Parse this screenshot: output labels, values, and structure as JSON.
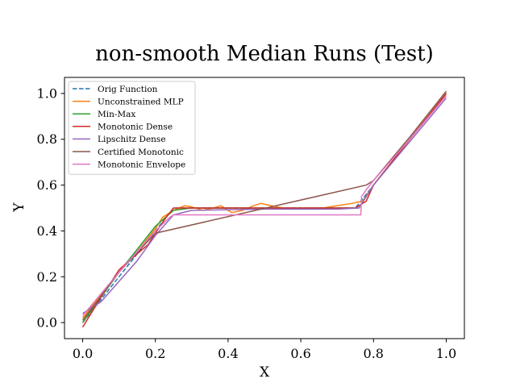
{
  "chart_data": {
    "type": "line",
    "title": "non-smooth Median Runs (Test)",
    "xlabel": "X",
    "ylabel": "Y",
    "xlim": [
      -0.05,
      1.05
    ],
    "ylim": [
      -0.07,
      1.07
    ],
    "xticks": [
      0.0,
      0.2,
      0.4,
      0.6,
      0.8,
      1.0
    ],
    "yticks": [
      0.0,
      0.2,
      0.4,
      0.6,
      0.8,
      1.0
    ],
    "xtick_labels": [
      "0.0",
      "0.2",
      "0.4",
      "0.6",
      "0.8",
      "1.0"
    ],
    "ytick_labels": [
      "0.0",
      "0.2",
      "0.4",
      "0.6",
      "0.8",
      "1.0"
    ],
    "legend_position": "top-left",
    "grid": false,
    "series": [
      {
        "name": "Orig Function",
        "color": "#1f77b4",
        "dashed": true,
        "x": [
          0.0,
          0.25,
          0.75,
          1.0
        ],
        "y": [
          0.0,
          0.5,
          0.5,
          1.0
        ]
      },
      {
        "name": "Unconstrained MLP",
        "color": "#ff7f0e",
        "dashed": false,
        "x": [
          0.0,
          0.05,
          0.1,
          0.15,
          0.2,
          0.22,
          0.25,
          0.28,
          0.3,
          0.33,
          0.36,
          0.38,
          0.41,
          0.44,
          0.47,
          0.49,
          0.52,
          0.55,
          0.58,
          0.62,
          0.66,
          0.7,
          0.74,
          0.77,
          0.8,
          0.85,
          0.9,
          0.95,
          1.0
        ],
        "y": [
          0.02,
          0.12,
          0.22,
          0.31,
          0.41,
          0.46,
          0.49,
          0.51,
          0.505,
          0.49,
          0.5,
          0.51,
          0.48,
          0.49,
          0.51,
          0.52,
          0.51,
          0.5,
          0.495,
          0.5,
          0.5,
          0.51,
          0.52,
          0.53,
          0.6,
          0.7,
          0.8,
          0.9,
          1.0
        ]
      },
      {
        "name": "Min-Max",
        "color": "#2ca02c",
        "dashed": false,
        "x": [
          0.0,
          0.1,
          0.2,
          0.25,
          0.3,
          0.5,
          0.76,
          0.8,
          0.9,
          1.0
        ],
        "y": [
          0.0,
          0.22,
          0.42,
          0.49,
          0.5,
          0.5,
          0.5,
          0.6,
          0.8,
          1.0
        ]
      },
      {
        "name": "Monotonic Dense",
        "color": "#d62728",
        "dashed": false,
        "x": [
          0.0,
          0.05,
          0.1,
          0.15,
          0.18,
          0.2,
          0.23,
          0.25,
          0.3,
          0.5,
          0.75,
          0.78,
          0.8,
          0.9,
          1.0
        ],
        "y": [
          -0.02,
          0.11,
          0.23,
          0.3,
          0.34,
          0.39,
          0.46,
          0.5,
          0.5,
          0.5,
          0.5,
          0.53,
          0.6,
          0.8,
          1.0
        ]
      },
      {
        "name": "Lipschitz Dense",
        "color": "#9467bd",
        "dashed": false,
        "x": [
          0.0,
          0.05,
          0.1,
          0.15,
          0.2,
          0.25,
          0.3,
          0.5,
          0.7,
          0.76,
          0.8,
          0.9,
          1.0
        ],
        "y": [
          0.04,
          0.09,
          0.18,
          0.27,
          0.38,
          0.47,
          0.49,
          0.495,
          0.495,
          0.5,
          0.6,
          0.79,
          0.98
        ]
      },
      {
        "name": "Certified Monotonic",
        "color": "#8c564b",
        "dashed": false,
        "x": [
          0.0,
          0.1,
          0.2,
          0.78,
          0.8,
          0.9,
          1.0
        ],
        "y": [
          0.01,
          0.22,
          0.39,
          0.6,
          0.62,
          0.81,
          1.01
        ]
      },
      {
        "name": "Monotonic Envelope",
        "color": "#e377c2",
        "dashed": false,
        "x": [
          0.0,
          0.1,
          0.2,
          0.24,
          0.25,
          0.765,
          0.767,
          0.78,
          0.8,
          0.9,
          1.0
        ],
        "y": [
          0.03,
          0.22,
          0.4,
          0.46,
          0.47,
          0.47,
          0.55,
          0.58,
          0.62,
          0.8,
          0.99
        ]
      }
    ]
  }
}
